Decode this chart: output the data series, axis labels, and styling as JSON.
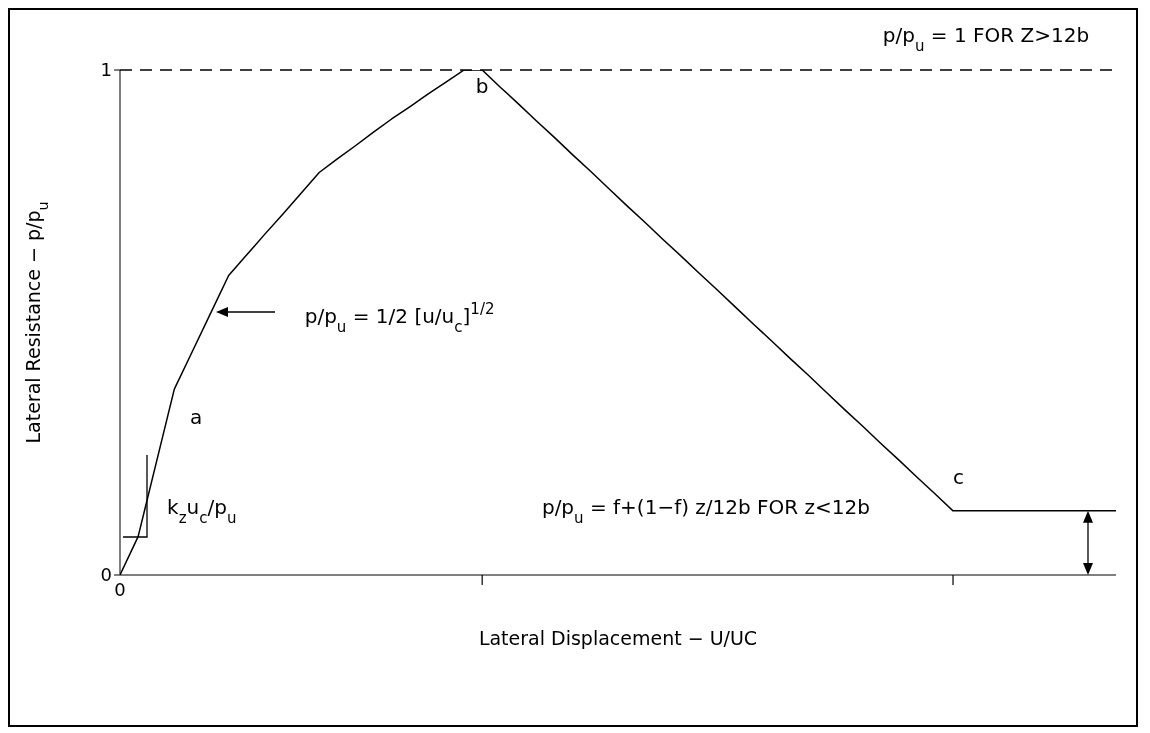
{
  "chart_data": {
    "type": "line",
    "xlabel": "Lateral Displacement − U/UC",
    "ylabel": "Lateral Resistance − p/p$_{u}$",
    "categories": [
      "0",
      null,
      null,
      null,
      null,
      null,
      null,
      null,
      null,
      null,
      null,
      null,
      null,
      null,
      null,
      null,
      null,
      null,
      null,
      null,
      null,
      null,
      null,
      null,
      null,
      null,
      null,
      null,
      null,
      null,
      null,
      null,
      null,
      null,
      null,
      null,
      null,
      null,
      null,
      null,
      null,
      null,
      null,
      null,
      null,
      null,
      null,
      null,
      null,
      null,
      null,
      null,
      null,
      null,
      null,
      null
    ],
    "series": [
      {
        "color": "#000000",
        "values": [
          0,
          0.076,
          0.222,
          0.368,
          0.443,
          0.518,
          0.593,
          0.634,
          0.675,
          0.715,
          0.756,
          0.797,
          0.824,
          0.85,
          0.877,
          0.903,
          0.927,
          0.952,
          0.976,
          1.0,
          1.0,
          0.966,
          0.933,
          0.899,
          0.866,
          0.832,
          0.799,
          0.765,
          0.731,
          0.698,
          0.664,
          0.631,
          0.597,
          0.564,
          0.53,
          0.496,
          0.463,
          0.429,
          0.396,
          0.362,
          0.328,
          0.295,
          0.261,
          0.228,
          0.194,
          0.161,
          0.127,
          0.127,
          0.127,
          0.127,
          0.127,
          0.127,
          0.127,
          0.127,
          0.127,
          0.127
        ]
      }
    ],
    "ylim": [
      0,
      1
    ],
    "yticks": [
      0,
      1
    ],
    "ref_lines": [
      {
        "axis": "y",
        "value": 1,
        "label": "p/p$_{u}$ = 1 FOR Z>12b",
        "color": "#000000",
        "line_style": "dashed"
      }
    ],
    "annotations": [
      "a",
      "b",
      "c",
      "p/p$_{u}$ = 1/2 [u/u$_{c}$]$^{1/2}$",
      "p/p$_{u}$ = f+(1−f) z/12b FOR z<12b",
      "k$_{z}$u$_{c}$/p$_{u}$"
    ],
    "grid": false,
    "legend": false,
    "marker": "none",
    "line_style": "solid"
  }
}
